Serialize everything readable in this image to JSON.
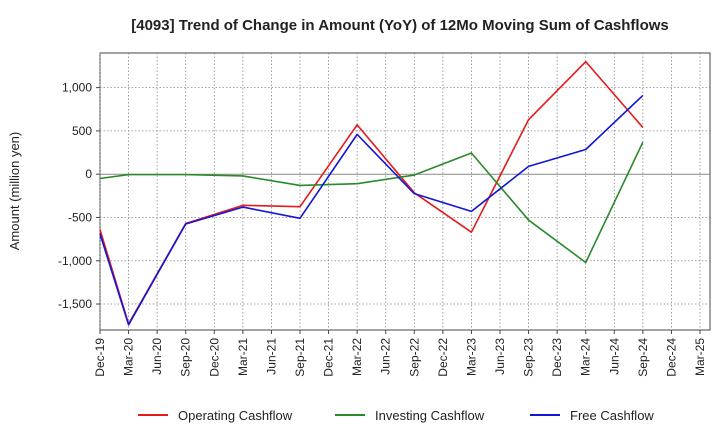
{
  "chart_data": {
    "type": "line",
    "title": "[4093]  Trend of Change in Amount (YoY) of 12Mo Moving Sum of Cashflows",
    "xlabel": "",
    "ylabel": "Amount (million yen)",
    "ylim": [
      -1800,
      1400
    ],
    "yticks": [
      -1500,
      -1000,
      -500,
      0,
      500,
      1000
    ],
    "ytick_labels": [
      "-1,500",
      "-1,000",
      "-500",
      "0",
      "500",
      "1,000"
    ],
    "categories": [
      "Dec-19",
      "Mar-20",
      "Jun-20",
      "Sep-20",
      "Dec-20",
      "Mar-21",
      "Jun-21",
      "Sep-21",
      "Dec-21",
      "Mar-22",
      "Jun-22",
      "Sep-22",
      "Dec-22",
      "Mar-23",
      "Jun-23",
      "Sep-23",
      "Dec-23",
      "Mar-24",
      "Jun-24",
      "Sep-24",
      "Dec-24",
      "Mar-25"
    ],
    "grid": true,
    "legend_position": "bottom",
    "series": [
      {
        "name": "Operating Cashflow",
        "color": "#e41a1a",
        "points": [
          {
            "x": "Dec-19",
            "y": -640
          },
          {
            "x": "Mar-20",
            "y": -1730
          },
          {
            "x": "Sep-20",
            "y": -570
          },
          {
            "x": "Mar-21",
            "y": -360
          },
          {
            "x": "Sep-21",
            "y": -375
          },
          {
            "x": "Mar-22",
            "y": 570
          },
          {
            "x": "Sep-22",
            "y": -215
          },
          {
            "x": "Mar-23",
            "y": -670
          },
          {
            "x": "Sep-23",
            "y": 630
          },
          {
            "x": "Mar-24",
            "y": 1300
          },
          {
            "x": "Sep-24",
            "y": 540
          }
        ]
      },
      {
        "name": "Investing Cashflow",
        "color": "#2a8a2a",
        "points": [
          {
            "x": "Dec-19",
            "y": -50
          },
          {
            "x": "Mar-20",
            "y": -5
          },
          {
            "x": "Sep-20",
            "y": -5
          },
          {
            "x": "Mar-21",
            "y": -20
          },
          {
            "x": "Sep-21",
            "y": -130
          },
          {
            "x": "Mar-22",
            "y": -110
          },
          {
            "x": "Sep-22",
            "y": -10
          },
          {
            "x": "Mar-23",
            "y": 245
          },
          {
            "x": "Sep-23",
            "y": -530
          },
          {
            "x": "Mar-24",
            "y": -1020
          },
          {
            "x": "Sep-24",
            "y": 370
          }
        ]
      },
      {
        "name": "Free Cashflow",
        "color": "#1414d6",
        "points": [
          {
            "x": "Dec-19",
            "y": -690
          },
          {
            "x": "Mar-20",
            "y": -1740
          },
          {
            "x": "Sep-20",
            "y": -575
          },
          {
            "x": "Mar-21",
            "y": -380
          },
          {
            "x": "Sep-21",
            "y": -510
          },
          {
            "x": "Mar-22",
            "y": 460
          },
          {
            "x": "Sep-22",
            "y": -225
          },
          {
            "x": "Mar-23",
            "y": -430
          },
          {
            "x": "Sep-23",
            "y": 90
          },
          {
            "x": "Mar-24",
            "y": 285
          },
          {
            "x": "Sep-24",
            "y": 910
          }
        ]
      }
    ]
  }
}
